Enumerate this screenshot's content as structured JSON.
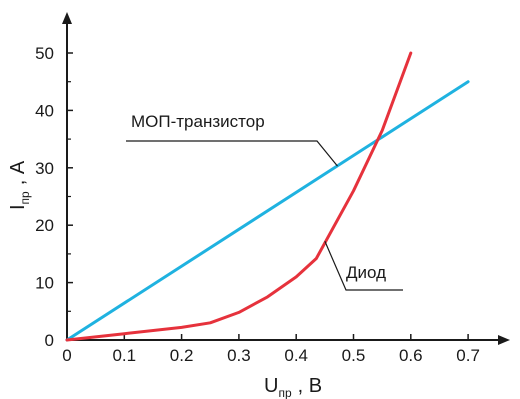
{
  "chart_data": {
    "type": "line",
    "x_axis": {
      "label_main": "U",
      "label_sub": "пр",
      "label_unit": ", В",
      "ticks": [
        "0",
        "0.1",
        "0.2",
        "0.3",
        "0.4",
        "0.5",
        "0.6",
        "0.7"
      ],
      "tick_values": [
        0,
        0.1,
        0.2,
        0.3,
        0.4,
        0.5,
        0.6,
        0.7
      ],
      "range": [
        0,
        0.76
      ]
    },
    "y_axis": {
      "label_main": "I",
      "label_sub": "пр",
      "label_unit": ", А",
      "ticks": [
        "0",
        "10",
        "20",
        "30",
        "40",
        "50"
      ],
      "tick_values": [
        0,
        10,
        20,
        30,
        40,
        50
      ],
      "minor_ticks": [
        5,
        15,
        25,
        35,
        45
      ],
      "range": [
        0,
        57
      ]
    },
    "grid": false,
    "series": [
      {
        "name": "МОП-транзистор",
        "color": "#1fb2e0",
        "x": [
          0,
          0.7
        ],
        "y": [
          0,
          45
        ]
      },
      {
        "name": "Диод",
        "color": "#e6323c",
        "x": [
          0,
          0.1,
          0.2,
          0.25,
          0.3,
          0.35,
          0.4,
          0.435,
          0.5,
          0.55,
          0.6
        ],
        "y": [
          0,
          1.1,
          2.2,
          3.0,
          4.8,
          7.5,
          11.0,
          14.2,
          26.0,
          36.5,
          50.0
        ]
      }
    ],
    "annotations": [
      {
        "text": "МОП-транзистор",
        "target_series": 0
      },
      {
        "text": "Диод",
        "target_series": 1
      }
    ]
  }
}
